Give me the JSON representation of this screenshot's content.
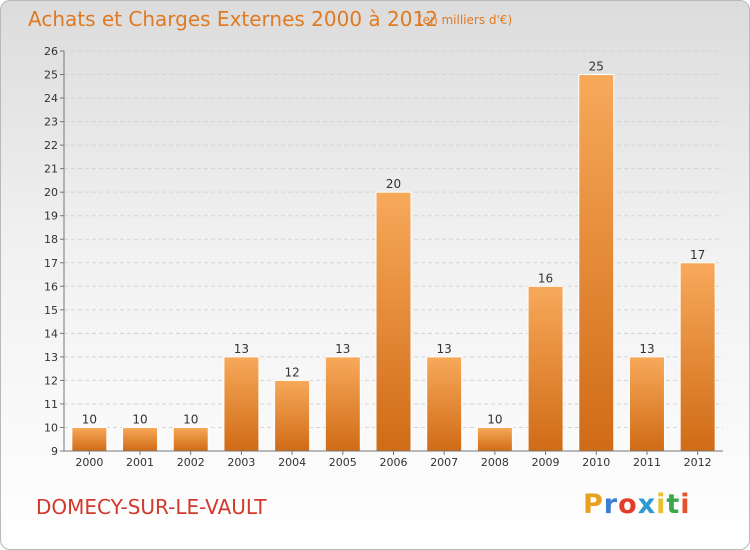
{
  "title": "Achats et Charges Externes 2000 à 2012",
  "subtitle": "(en milliers d'€)",
  "commune": "DOMECY-SUR-LE-VAULT",
  "logo": {
    "letters": [
      "P",
      "r",
      "o",
      "x",
      "i",
      "t",
      "i"
    ],
    "colors": [
      "#e8a020",
      "#3a7fd0",
      "#e33c2a",
      "#2a9ad6",
      "#e8c12a",
      "#3aa84a",
      "#e2532e"
    ]
  },
  "colors": {
    "bar_light": "#f7a95a",
    "bar_dark": "#d06b16",
    "title": "#e07a22",
    "commune": "#d0392b"
  },
  "chart_data": {
    "type": "bar",
    "categories": [
      "2000",
      "2001",
      "2002",
      "2003",
      "2004",
      "2005",
      "2006",
      "2007",
      "2008",
      "2009",
      "2010",
      "2011",
      "2012"
    ],
    "values": [
      10,
      10,
      10,
      13,
      12,
      13,
      20,
      13,
      10,
      16,
      25,
      13,
      17
    ],
    "ylim": [
      9,
      26
    ],
    "yticks": [
      9,
      10,
      11,
      12,
      13,
      14,
      15,
      16,
      17,
      18,
      19,
      20,
      21,
      22,
      23,
      24,
      25,
      26
    ],
    "grid": true,
    "data_labels": true
  }
}
